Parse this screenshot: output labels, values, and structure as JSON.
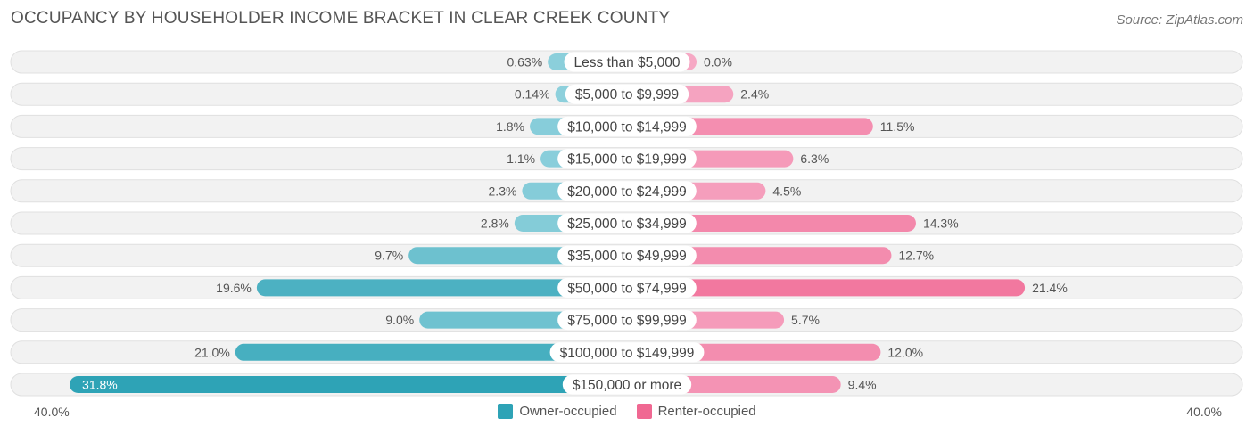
{
  "title": "OCCUPANCY BY HOUSEHOLDER INCOME BRACKET IN CLEAR CREEK COUNTY",
  "source": "Source: ZipAtlas.com",
  "axis": {
    "left_label": "40.0%",
    "right_label": "40.0%"
  },
  "legend": {
    "owner": "Owner-occupied",
    "renter": "Renter-occupied"
  },
  "colors": {
    "owner_light": "#8dd0dc",
    "owner_dark": "#2ea3b6",
    "renter_light": "#f6a8c4",
    "renter_dark": "#f06892",
    "row_bg": "#f2f2f2",
    "row_border": "#e0e0e0"
  },
  "chart_data": {
    "type": "bar",
    "orientation": "diverging-horizontal",
    "xlim": [
      -40,
      40
    ],
    "categories": [
      "Less than $5,000",
      "$5,000 to $9,999",
      "$10,000 to $14,999",
      "$15,000 to $19,999",
      "$20,000 to $24,999",
      "$25,000 to $34,999",
      "$35,000 to $49,999",
      "$50,000 to $74,999",
      "$75,000 to $99,999",
      "$100,000 to $149,999",
      "$150,000 or more"
    ],
    "series": [
      {
        "name": "Owner-occupied",
        "values": [
          0.63,
          0.14,
          1.8,
          1.1,
          2.3,
          2.8,
          9.7,
          19.6,
          9.0,
          21.0,
          31.8
        ],
        "labels": [
          "0.63%",
          "0.14%",
          "1.8%",
          "1.1%",
          "2.3%",
          "2.8%",
          "9.7%",
          "19.6%",
          "9.0%",
          "21.0%",
          "31.8%"
        ]
      },
      {
        "name": "Renter-occupied",
        "values": [
          0.0,
          2.4,
          11.5,
          6.3,
          4.5,
          14.3,
          12.7,
          21.4,
          5.7,
          12.0,
          9.4
        ],
        "labels": [
          "0.0%",
          "2.4%",
          "11.5%",
          "6.3%",
          "4.5%",
          "14.3%",
          "12.7%",
          "21.4%",
          "5.7%",
          "12.0%",
          "9.4%"
        ]
      }
    ]
  }
}
